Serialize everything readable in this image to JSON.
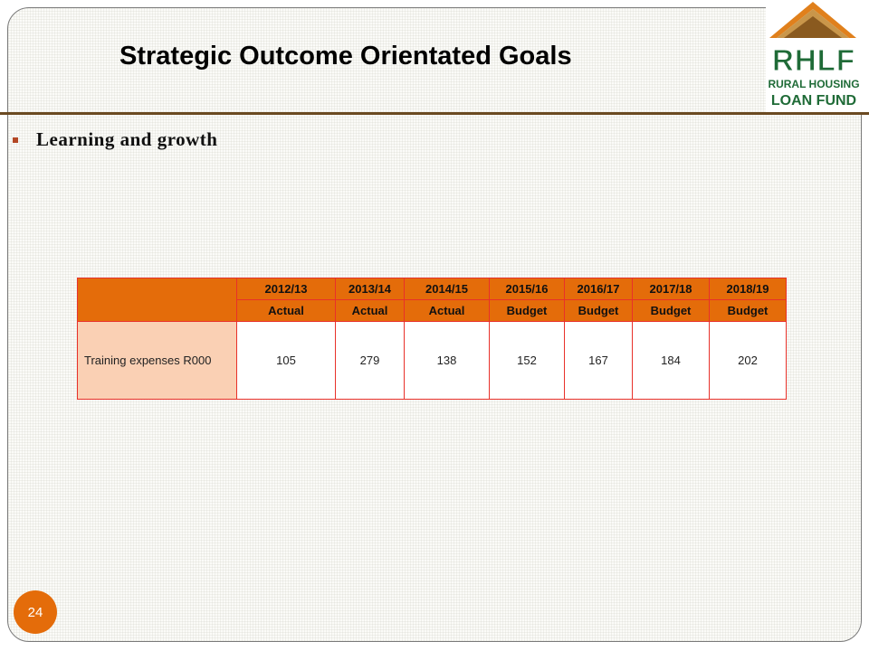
{
  "slide": {
    "title": "Strategic Outcome Orientated Goals",
    "bullet": "Learning and growth",
    "page_number": "24"
  },
  "logo": {
    "abbr": "RHLF",
    "line1": "RURAL HOUSING",
    "line2": "LOAN FUND",
    "colors": {
      "green": "#1f6b37",
      "orange": "#e0801c",
      "brown": "#8a5a1f"
    }
  },
  "table": {
    "years": [
      "2012/13",
      "2013/14",
      "2014/15",
      "2015/16",
      "2016/17",
      "2017/18",
      "2018/19"
    ],
    "types": [
      "Actual",
      "Actual",
      "Actual",
      "Budget",
      "Budget",
      "Budget",
      "Budget"
    ],
    "rows": [
      {
        "label": "Training expenses R000",
        "values": [
          "105",
          "279",
          "138",
          "152",
          "167",
          "184",
          "202"
        ]
      }
    ]
  },
  "colors": {
    "header_fill": "#e46c0a",
    "label_fill": "#fad0b4",
    "table_border": "#e8312a",
    "divider": "#6b4a21",
    "bullet": "#b34724"
  }
}
